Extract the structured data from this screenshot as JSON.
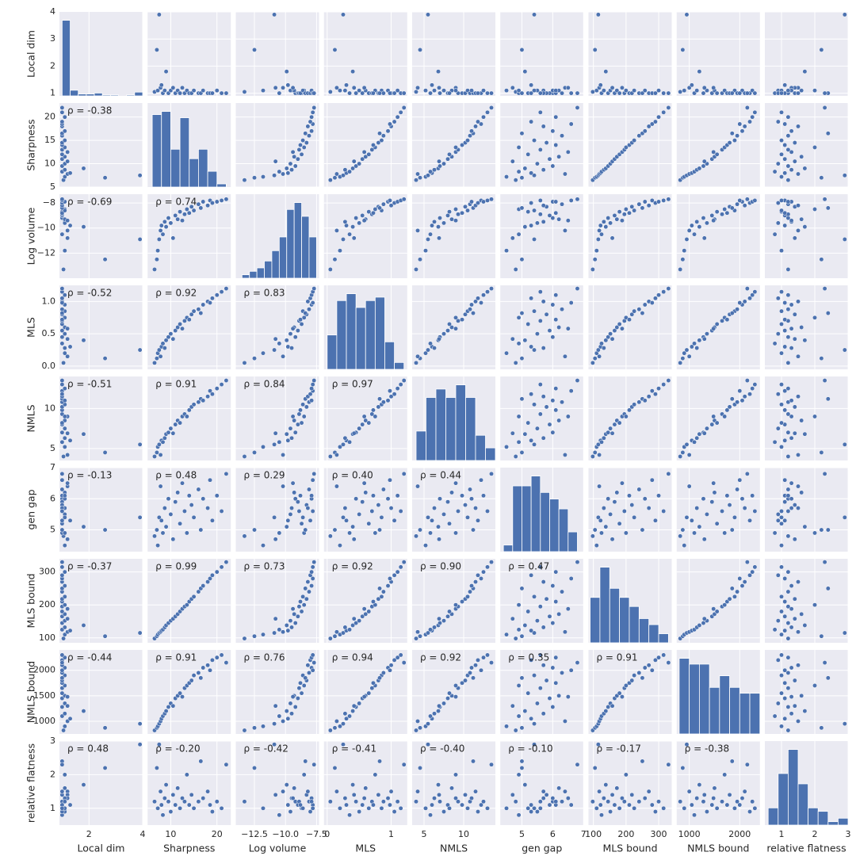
{
  "chart_data": {
    "type": "scatter",
    "color": "#4c72b0",
    "grid": true,
    "variables": [
      {
        "name": "Local dim",
        "lim": [
          0.9,
          4.0
        ],
        "xticks": [
          2,
          4
        ],
        "yticks": [
          1,
          2,
          3,
          4
        ],
        "values": [
          1.05,
          2.6,
          1.1,
          3.9,
          1.2,
          1.3,
          1.0,
          1.1,
          1.8,
          1.0,
          1.1,
          1.2,
          1.0,
          1.1,
          1.0,
          1.2,
          1.0,
          1.1,
          1.0,
          1.0,
          1.1,
          1.0,
          1.0,
          1.1,
          1.0,
          1.0,
          1.0,
          1.1,
          1.0,
          1.0
        ],
        "hist": {
          "bins": [
            1.0,
            1.3,
            1.6,
            1.9,
            2.2,
            2.5,
            2.8,
            3.1,
            3.4,
            3.7,
            4.0
          ],
          "counts": [
            80,
            6,
            2,
            2,
            3,
            1,
            1,
            0,
            1,
            4
          ]
        }
      },
      {
        "name": "Sharpness",
        "lim": [
          5,
          23
        ],
        "xticks": [
          10,
          20
        ],
        "yticks": [
          5,
          10,
          15,
          20
        ],
        "values": [
          6.5,
          7.0,
          7.2,
          7.5,
          7.8,
          8.0,
          8.3,
          8.7,
          9.0,
          9.5,
          10.0,
          10.5,
          11.0,
          11.5,
          12.0,
          12.5,
          13.0,
          13.5,
          14.0,
          14.5,
          15.0,
          16.0,
          16.5,
          17.0,
          18.0,
          18.5,
          19.0,
          20.0,
          21.0,
          22.0
        ],
        "hist": {
          "bins": [
            6,
            8,
            10,
            12,
            14,
            16,
            18,
            20,
            22
          ],
          "counts": [
            23,
            24,
            12,
            22,
            9,
            12,
            5,
            1
          ]
        }
      },
      {
        "name": "Log volume",
        "lim": [
          -14,
          -7.3
        ],
        "xticks": [
          {
            "value": -12.5,
            "label": "−12.5"
          },
          {
            "value": -10.0,
            "label": "−10.0"
          },
          {
            "value": -7.5,
            "label": "−7.5"
          }
        ],
        "yticks": [
          {
            "value": -12,
            "label": "−12"
          },
          {
            "value": -10,
            "label": "−10"
          },
          {
            "value": -8,
            "label": "−8"
          }
        ],
        "values": [
          -13.3,
          -12.5,
          -11.8,
          -10.9,
          -10.2,
          -9.8,
          -10.5,
          -9.5,
          -9.9,
          -9.2,
          -9.6,
          -10.8,
          -9.0,
          -9.3,
          -8.7,
          -9.4,
          -8.9,
          -8.5,
          -8.8,
          -8.3,
          -8.6,
          -8.1,
          -8.4,
          -7.9,
          -8.2,
          -7.8,
          -8.0,
          -7.9,
          -7.8,
          -7.7
        ],
        "hist": {
          "bins": [
            -13.5,
            -12.9,
            -12.3,
            -11.7,
            -11.1,
            -10.5,
            -9.9,
            -9.3,
            -8.7,
            -8.1,
            -7.5
          ],
          "counts": [
            1,
            2,
            3,
            5,
            8,
            12,
            20,
            22,
            18,
            12
          ]
        }
      },
      {
        "name": "MLS",
        "lim": [
          -0.05,
          1.25
        ],
        "xticks": [
          0,
          1
        ],
        "yticks": [
          {
            "value": 0.0,
            "label": "0.0"
          },
          0.5,
          {
            "value": 1.0,
            "label": "1.0"
          }
        ],
        "values": [
          0.05,
          0.12,
          0.2,
          0.25,
          0.15,
          0.3,
          0.35,
          0.28,
          0.4,
          0.45,
          0.5,
          0.42,
          0.55,
          0.6,
          0.65,
          0.58,
          0.7,
          0.75,
          0.72,
          0.8,
          0.85,
          0.88,
          0.82,
          0.95,
          1.0,
          0.98,
          1.05,
          1.1,
          1.15,
          1.2
        ],
        "hist": {
          "bins": [
            0,
            0.15,
            0.3,
            0.45,
            0.6,
            0.75,
            0.9,
            1.05,
            1.2
          ],
          "counts": [
            10,
            20,
            22,
            18,
            20,
            21,
            8,
            2
          ]
        }
      },
      {
        "name": "NMLS",
        "lim": [
          3.5,
          14
        ],
        "xticks": [
          5,
          10
        ],
        "yticks": [
          5,
          10
        ],
        "values": [
          4.0,
          4.5,
          5.2,
          5.5,
          4.2,
          6.0,
          5.8,
          6.3,
          6.8,
          7.0,
          7.5,
          6.9,
          8.0,
          8.5,
          8.2,
          9.0,
          9.3,
          9.0,
          9.8,
          10.2,
          10.5,
          10.8,
          11.2,
          11.0,
          11.5,
          12.2,
          11.8,
          12.5,
          13.0,
          13.5
        ],
        "hist": {
          "bins": [
            4,
            5.25,
            6.5,
            7.75,
            9,
            10.25,
            11.5,
            12.75,
            14
          ],
          "counts": [
            7,
            15,
            17,
            15,
            18,
            15,
            6,
            3
          ]
        }
      },
      {
        "name": "gen gap",
        "lim": [
          4.3,
          7.0
        ],
        "xticks": [
          5,
          6,
          7
        ],
        "yticks": [
          5,
          6,
          7
        ],
        "values": [
          4.8,
          5.0,
          4.5,
          5.4,
          6.4,
          5.3,
          4.9,
          5.7,
          5.1,
          6.0,
          5.5,
          4.7,
          5.9,
          6.2,
          5.2,
          6.5,
          5.6,
          4.9,
          6.1,
          5.8,
          5.4,
          6.3,
          5.0,
          6.0,
          5.7,
          6.6,
          5.3,
          6.1,
          5.6,
          6.8
        ],
        "hist": {
          "bins": [
            4.4,
            4.7,
            5.0,
            5.3,
            5.6,
            5.9,
            6.2,
            6.5,
            6.8
          ],
          "counts": [
            2,
            20,
            20,
            23,
            18,
            16,
            13,
            6
          ]
        }
      },
      {
        "name": "MLS bound",
        "lim": [
          85,
          340
        ],
        "xticks": [
          100,
          200,
          300
        ],
        "yticks": [
          100,
          200,
          300
        ],
        "values": [
          98,
          105,
          110,
          115,
          118,
          122,
          125,
          132,
          138,
          145,
          152,
          158,
          165,
          172,
          180,
          188,
          195,
          200,
          210,
          218,
          225,
          240,
          250,
          258,
          270,
          280,
          290,
          300,
          315,
          330
        ],
        "hist": {
          "bins": [
            90,
            120,
            150,
            180,
            210,
            240,
            270,
            300,
            330
          ],
          "counts": [
            15,
            25,
            18,
            15,
            12,
            8,
            6,
            3
          ]
        }
      },
      {
        "name": "NMLS bound",
        "lim": [
          750,
          2400
        ],
        "xticks": [
          1000,
          2000
        ],
        "yticks": [
          1000,
          1500,
          2000
        ],
        "values": [
          820,
          870,
          900,
          950,
          1000,
          1050,
          1100,
          1150,
          1200,
          1280,
          1350,
          1300,
          1450,
          1500,
          1550,
          1480,
          1650,
          1700,
          1750,
          1800,
          1900,
          1950,
          1850,
          2050,
          2100,
          2000,
          2200,
          2250,
          2300,
          2150
        ],
        "hist": {
          "bins": [
            800,
            1000,
            1200,
            1400,
            1600,
            1800,
            2000,
            2200,
            2400
          ],
          "counts": [
            13,
            12,
            12,
            8,
            10,
            8,
            7,
            7
          ]
        }
      },
      {
        "name": "relative flatness",
        "lim": [
          0.5,
          3.0
        ],
        "xticks": [
          1,
          2,
          3
        ],
        "yticks": [
          1,
          2,
          3
        ],
        "values": [
          1.2,
          2.2,
          1.0,
          2.9,
          1.5,
          1.1,
          0.8,
          1.3,
          1.7,
          1.2,
          0.9,
          1.4,
          1.1,
          1.6,
          1.0,
          1.3,
          1.2,
          2.0,
          1.1,
          1.4,
          1.0,
          1.2,
          2.4,
          1.3,
          1.5,
          1.1,
          0.9,
          1.2,
          1.0,
          2.3
        ],
        "hist": {
          "bins": [
            0.6,
            0.9,
            1.2,
            1.5,
            1.8,
            2.1,
            2.4,
            2.7,
            3.0
          ],
          "counts": [
            5,
            15,
            22,
            12,
            5,
            4,
            1,
            2
          ]
        }
      }
    ],
    "correlations": [
      [
        "ρ = -0.38"
      ],
      [
        "ρ = -0.69",
        "ρ = 0.74"
      ],
      [
        "ρ = -0.52",
        "ρ = 0.92",
        "ρ = 0.83"
      ],
      [
        "ρ = -0.51",
        "ρ = 0.91",
        "ρ = 0.84",
        "ρ = 0.97"
      ],
      [
        "ρ = -0.13",
        "ρ = 0.48",
        "ρ = 0.29",
        "ρ = 0.40",
        "ρ = 0.44"
      ],
      [
        "ρ = -0.37",
        "ρ = 0.99",
        "ρ = 0.73",
        "ρ = 0.92",
        "ρ = 0.90",
        "ρ = 0.47"
      ],
      [
        "ρ = -0.44",
        "ρ = 0.91",
        "ρ = 0.76",
        "ρ = 0.94",
        "ρ = 0.92",
        "ρ = 0.35",
        "ρ = 0.91"
      ],
      [
        "ρ = 0.48",
        "ρ = -0.20",
        "ρ = -0.42",
        "ρ = -0.41",
        "ρ = -0.40",
        "ρ = -0.10",
        "ρ = -0.17",
        "ρ = -0.38"
      ]
    ]
  }
}
